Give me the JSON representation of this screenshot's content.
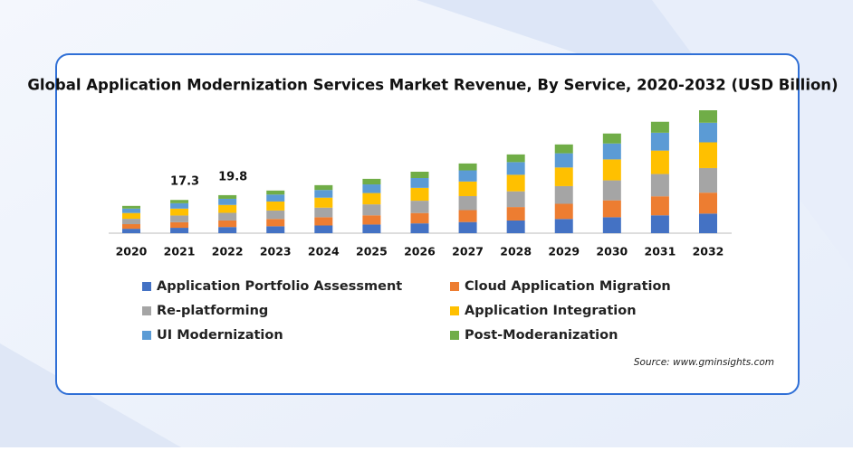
{
  "chart_data": {
    "type": "stacked-bar",
    "title": "Global Application Modernization Services Market Revenue, By Service, 2020-2032 (USD Billion)",
    "categories": [
      "2020",
      "2021",
      "2022",
      "2023",
      "2024",
      "2025",
      "2026",
      "2027",
      "2028",
      "2029",
      "2030",
      "2031",
      "2032"
    ],
    "series": [
      {
        "name": "Application Portfolio Assessment",
        "color": "#4472c4",
        "values": [
          2.3,
          2.8,
          3.2,
          3.6,
          4.0,
          4.5,
          5.1,
          5.8,
          6.6,
          7.4,
          8.3,
          9.3,
          10.2
        ]
      },
      {
        "name": "Cloud Application Migration",
        "color": "#ed7d31",
        "values": [
          2.4,
          2.9,
          3.4,
          3.8,
          4.3,
          4.8,
          5.4,
          6.2,
          7.0,
          7.9,
          8.8,
          9.9,
          10.9
        ]
      },
      {
        "name": "Re-platforming",
        "color": "#a5a5a5",
        "values": [
          2.8,
          3.5,
          4.0,
          4.4,
          5.0,
          5.7,
          6.4,
          7.3,
          8.2,
          9.2,
          10.4,
          11.6,
          12.8
        ]
      },
      {
        "name": "Application Integration",
        "color": "#ffc000",
        "values": [
          3.0,
          3.6,
          4.1,
          4.7,
          5.2,
          5.9,
          6.7,
          7.6,
          8.6,
          9.7,
          10.9,
          12.2,
          13.4
        ]
      },
      {
        "name": "UI Modernization",
        "color": "#5b9bd5",
        "values": [
          2.3,
          2.8,
          3.2,
          3.6,
          4.0,
          4.5,
          5.1,
          5.8,
          6.6,
          7.4,
          8.3,
          9.3,
          10.2
        ]
      },
      {
        "name": "Post-Moderanization",
        "color": "#70ad47",
        "values": [
          1.4,
          1.7,
          1.9,
          2.1,
          2.5,
          2.9,
          3.3,
          3.6,
          4.0,
          4.6,
          5.2,
          5.7,
          6.5
        ]
      }
    ],
    "annotations": [
      {
        "x": "2021",
        "value": 17.3
      },
      {
        "x": "2022",
        "value": 19.8
      }
    ],
    "source": "Source: www.gminsights.com"
  }
}
